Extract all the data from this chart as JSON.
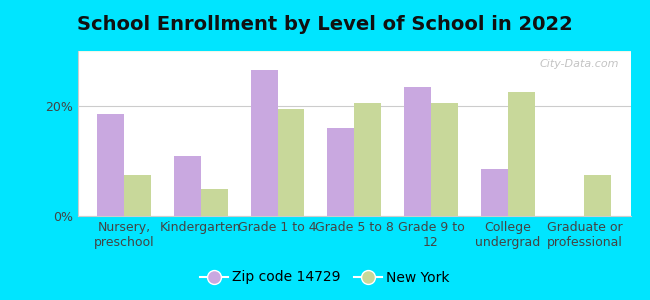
{
  "title": "School Enrollment by Level of School in 2022",
  "categories": [
    "Nursery,\npreschool",
    "Kindergarten",
    "Grade 1 to 4",
    "Grade 5 to 8",
    "Grade 9 to\n12",
    "College\nundergrad",
    "Graduate or\nprofessional"
  ],
  "zip_values": [
    18.5,
    11.0,
    26.5,
    16.0,
    23.5,
    8.5,
    0.0
  ],
  "ny_values": [
    7.5,
    5.0,
    19.5,
    20.5,
    20.5,
    22.5,
    7.5
  ],
  "zip_color": "#c9a8e0",
  "ny_color": "#c8d89a",
  "background_outer": "#00e5ff",
  "ylim": [
    0,
    30
  ],
  "yticks": [
    0,
    20
  ],
  "ytick_labels": [
    "0%",
    "20%"
  ],
  "legend_zip": "Zip code 14729",
  "legend_ny": "New York",
  "watermark": "City-Data.com",
  "title_fontsize": 14,
  "tick_fontsize": 9,
  "legend_fontsize": 10
}
